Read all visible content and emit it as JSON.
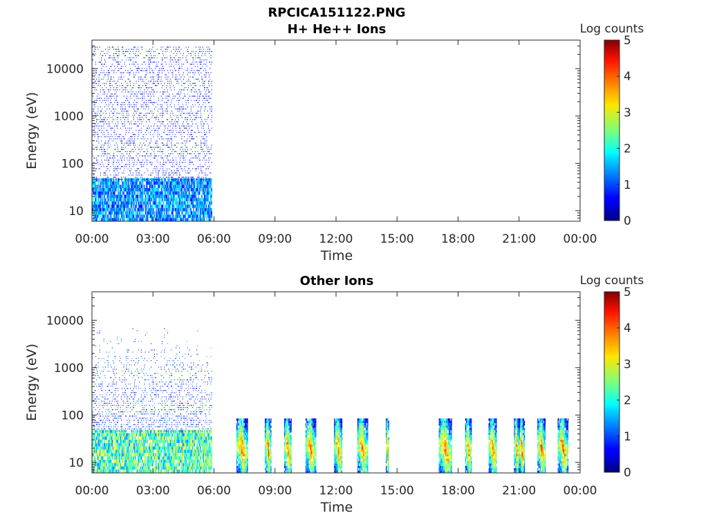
{
  "figure_title": "RPCICA151122.PNG",
  "colors": {
    "colormap": "jet",
    "axis": "#262626",
    "background": "#ffffff"
  },
  "chart_data": [
    {
      "type": "heatmap",
      "title": "H+ He++ Ions",
      "xlabel": "Time",
      "ylabel": "Energy (eV)",
      "yscale": "log",
      "ylim": [
        6,
        40000
      ],
      "xlim": [
        0,
        24
      ],
      "x_unit": "hours",
      "x_ticks": [
        "00:00",
        "03:00",
        "06:00",
        "09:00",
        "12:00",
        "15:00",
        "18:00",
        "21:00",
        "00:00"
      ],
      "y_ticks": [
        {
          "value": 10,
          "label": "10"
        },
        {
          "value": 100,
          "label": "100"
        },
        {
          "value": 1000,
          "label": "1000"
        },
        {
          "value": 10000,
          "label": "10000"
        }
      ],
      "colorbar": {
        "label": "Log counts",
        "range": [
          0,
          5
        ],
        "ticks": [
          "0",
          "1",
          "2",
          "3",
          "4",
          "5"
        ]
      },
      "grid": false,
      "data_segments": [
        {
          "start": 0.0,
          "end": 5.9,
          "pattern": "broad"
        }
      ]
    },
    {
      "type": "heatmap",
      "title": "Other Ions",
      "xlabel": "Time",
      "ylabel": "Energy (eV)",
      "yscale": "log",
      "ylim": [
        6,
        40000
      ],
      "xlim": [
        0,
        24
      ],
      "x_unit": "hours",
      "x_ticks": [
        "00:00",
        "03:00",
        "06:00",
        "09:00",
        "12:00",
        "15:00",
        "18:00",
        "21:00",
        "00:00"
      ],
      "y_ticks": [
        {
          "value": 10,
          "label": "10"
        },
        {
          "value": 100,
          "label": "100"
        },
        {
          "value": 1000,
          "label": "1000"
        },
        {
          "value": 10000,
          "label": "10000"
        }
      ],
      "colorbar": {
        "label": "Log counts",
        "range": [
          0,
          5
        ],
        "ticks": [
          "0",
          "1",
          "2",
          "3",
          "4",
          "5"
        ]
      },
      "grid": false,
      "data_segments": [
        {
          "start": 0.0,
          "end": 5.9,
          "pattern": "broad"
        },
        {
          "start": 7.1,
          "end": 7.65,
          "pattern": "burst"
        },
        {
          "start": 8.5,
          "end": 8.8,
          "pattern": "burst"
        },
        {
          "start": 9.45,
          "end": 9.8,
          "pattern": "burst"
        },
        {
          "start": 10.5,
          "end": 11.0,
          "pattern": "burst"
        },
        {
          "start": 11.9,
          "end": 12.3,
          "pattern": "burst"
        },
        {
          "start": 13.05,
          "end": 13.55,
          "pattern": "burst"
        },
        {
          "start": 14.45,
          "end": 14.6,
          "pattern": "burst"
        },
        {
          "start": 17.05,
          "end": 17.7,
          "pattern": "burst"
        },
        {
          "start": 18.35,
          "end": 18.65,
          "pattern": "burst"
        },
        {
          "start": 19.5,
          "end": 19.9,
          "pattern": "burst"
        },
        {
          "start": 20.75,
          "end": 21.0,
          "pattern": "burst"
        },
        {
          "start": 21.0,
          "end": 21.25,
          "pattern": "burst"
        },
        {
          "start": 21.9,
          "end": 22.3,
          "pattern": "burst"
        },
        {
          "start": 22.9,
          "end": 23.4,
          "pattern": "burst"
        }
      ]
    }
  ]
}
